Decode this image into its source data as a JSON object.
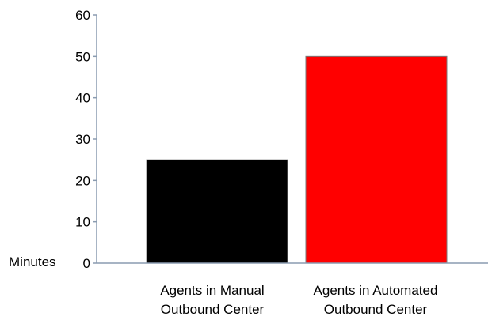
{
  "chart_data": {
    "type": "bar",
    "categories": [
      [
        "Agents in Manual",
        "Outbound Center"
      ],
      [
        "Agents in Automated",
        "Outbound Center"
      ]
    ],
    "values": [
      25,
      50
    ],
    "bar_colors": [
      "#000000",
      "#ff0000"
    ],
    "title": "",
    "xlabel": "",
    "ylabel": "Minutes",
    "ylim": [
      0,
      60
    ],
    "yticks": [
      "0",
      "10",
      "20",
      "30",
      "40",
      "50",
      "60"
    ],
    "grid": false,
    "legend": "none",
    "axis_color": "#8a9bb0"
  }
}
